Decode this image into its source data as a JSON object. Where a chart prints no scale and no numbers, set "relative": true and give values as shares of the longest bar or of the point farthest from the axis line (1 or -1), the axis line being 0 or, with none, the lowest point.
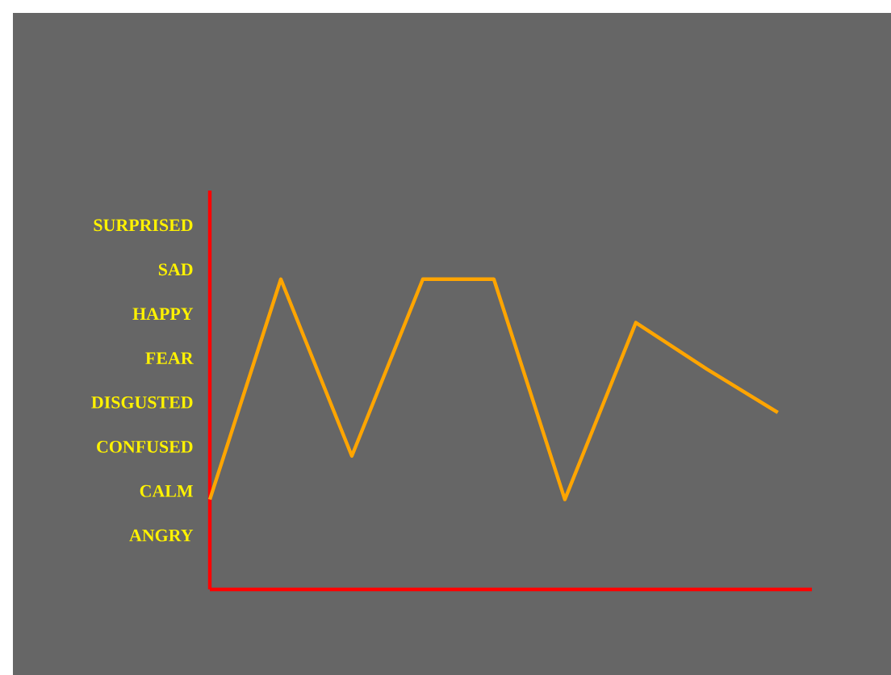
{
  "chart_data": {
    "type": "line",
    "relative": true,
    "categories": [
      null,
      null,
      null,
      null,
      null,
      null,
      null,
      null,
      null
    ],
    "annotations": [
      "SURPRISED",
      "SAD",
      "HAPPY",
      "FEAR",
      "DISGUSTED",
      "CONFUSED",
      "CALM",
      "ANGRY"
    ],
    "series": [
      {
        "color": "#ffa500",
        "values": [
          0.29,
          1,
          0.43,
          1,
          1,
          0.29,
          0.86,
          0.71,
          0.57
        ]
      }
    ]
  }
}
